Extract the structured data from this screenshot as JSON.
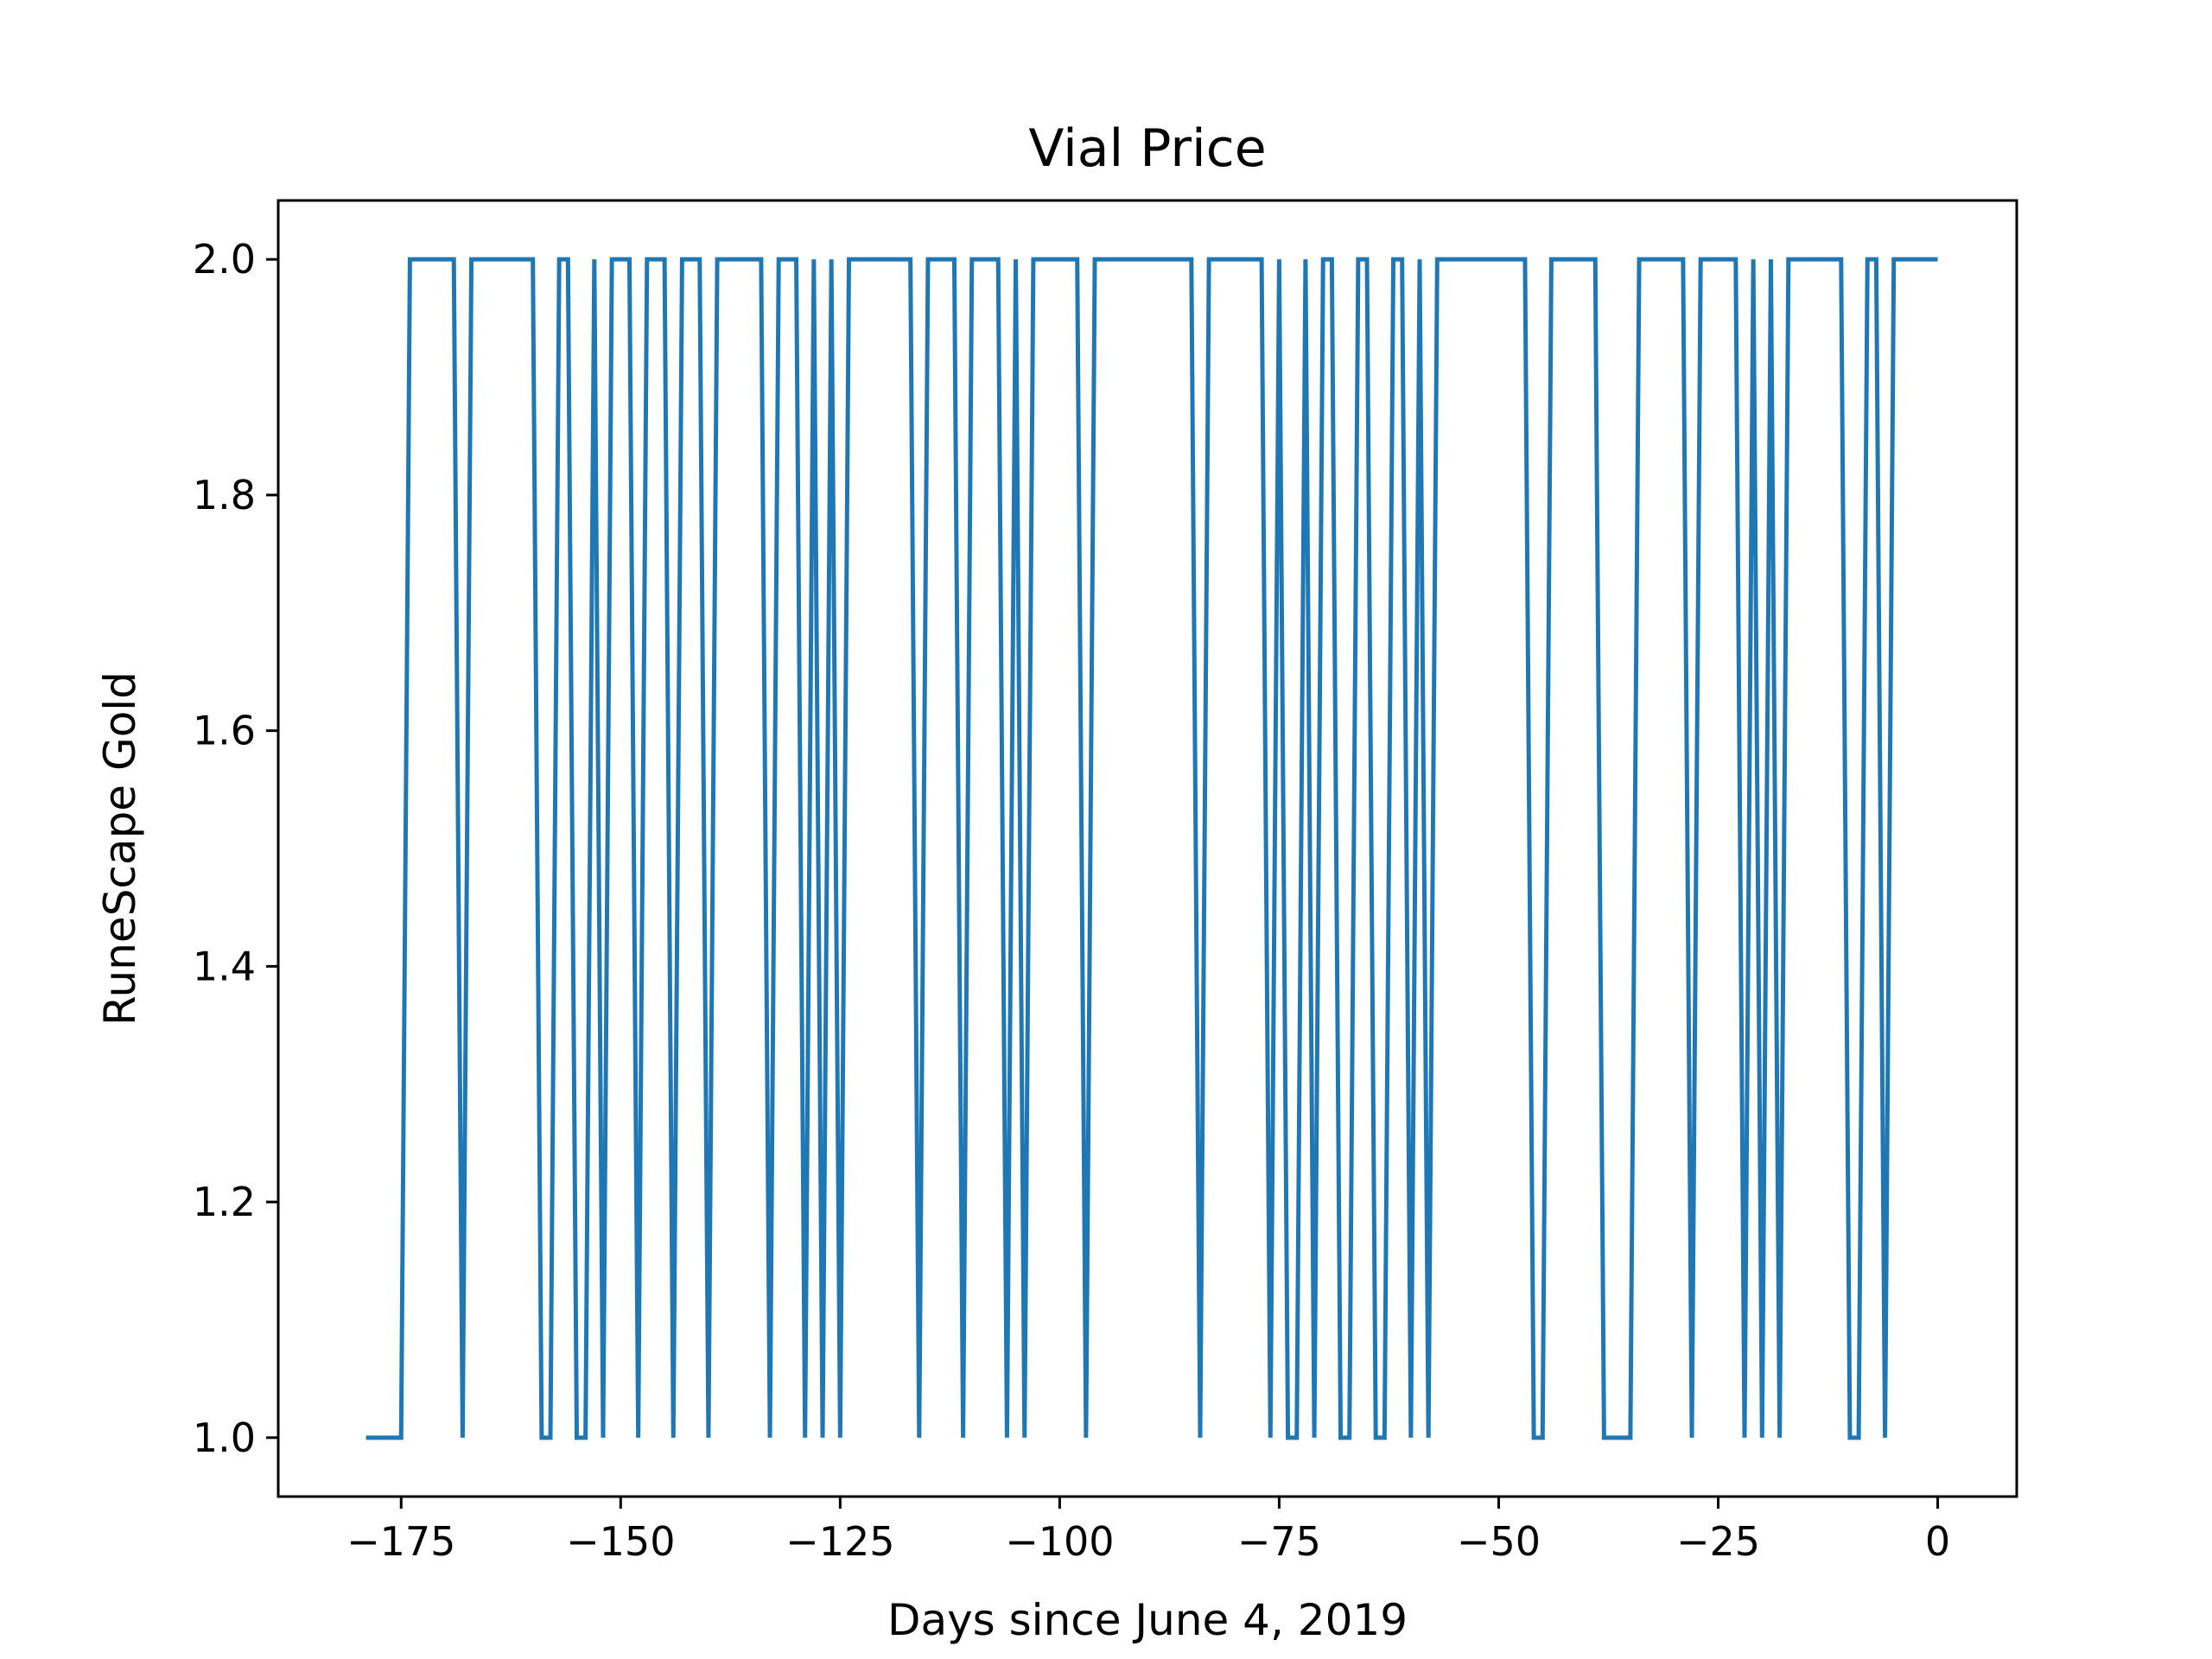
{
  "chart_data": {
    "type": "line",
    "title": "Vial Price",
    "xlabel": "Days since June 4, 2019",
    "ylabel": "RuneScape Gold",
    "xlim": [
      -189,
      9
    ],
    "ylim": [
      0.95,
      2.05
    ],
    "xticks": [
      -175,
      -150,
      -125,
      -100,
      -75,
      -50,
      -25,
      0
    ],
    "xtick_labels": [
      "−175",
      "−150",
      "−125",
      "−100",
      "−75",
      "−50",
      "−25",
      "0"
    ],
    "yticks": [
      1.0,
      1.2,
      1.4,
      1.6,
      1.8,
      2.0
    ],
    "ytick_labels": [
      "1.0",
      "1.2",
      "1.4",
      "1.6",
      "1.8",
      "2.0"
    ],
    "grid": false,
    "legend": false,
    "series": [
      {
        "color": "#1f77b4",
        "x": [
          -179,
          -178,
          -177,
          -176,
          -175,
          -174,
          -173,
          -172,
          -171,
          -170,
          -169,
          -168,
          -167,
          -166,
          -165,
          -164,
          -163,
          -162,
          -161,
          -160,
          -159,
          -158,
          -157,
          -156,
          -155,
          -154,
          -153,
          -152,
          -151,
          -150,
          -149,
          -148,
          -147,
          -146,
          -145,
          -144,
          -143,
          -142,
          -141,
          -140,
          -139,
          -138,
          -137,
          -136,
          -135,
          -134,
          -133,
          -132,
          -131,
          -130,
          -129,
          -128,
          -127,
          -126,
          -125,
          -124,
          -123,
          -122,
          -121,
          -120,
          -119,
          -118,
          -117,
          -116,
          -115,
          -114,
          -113,
          -112,
          -111,
          -110,
          -109,
          -108,
          -107,
          -106,
          -105,
          -104,
          -103,
          -102,
          -101,
          -100,
          -99,
          -98,
          -97,
          -96,
          -95,
          -94,
          -93,
          -92,
          -91,
          -90,
          -89,
          -88,
          -87,
          -86,
          -85,
          -84,
          -83,
          -82,
          -81,
          -80,
          -79,
          -78,
          -77,
          -76,
          -75,
          -74,
          -73,
          -72,
          -71,
          -70,
          -69,
          -68,
          -67,
          -66,
          -65,
          -64,
          -63,
          -62,
          -61,
          -60,
          -59,
          -58,
          -57,
          -56,
          -55,
          -54,
          -53,
          -52,
          -51,
          -50,
          -49,
          -48,
          -47,
          -46,
          -45,
          -44,
          -43,
          -42,
          -41,
          -40,
          -39,
          -38,
          -37,
          -36,
          -35,
          -34,
          -33,
          -32,
          -31,
          -30,
          -29,
          -28,
          -27,
          -26,
          -25,
          -24,
          -23,
          -22,
          -21,
          -20,
          -19,
          -18,
          -17,
          -16,
          -15,
          -14,
          -13,
          -12,
          -11,
          -10,
          -9,
          -8,
          -7,
          -6,
          -5,
          -4,
          -3,
          -2,
          -1,
          0
        ],
        "y": [
          1,
          1,
          1,
          1,
          1,
          2,
          2,
          2,
          2,
          2,
          2,
          1,
          2,
          2,
          2,
          2,
          2,
          2,
          2,
          2,
          1,
          1,
          2,
          2,
          1,
          1,
          2,
          1,
          2,
          2,
          2,
          1,
          2,
          2,
          2,
          1,
          2,
          2,
          2,
          1,
          2,
          2,
          2,
          2,
          2,
          2,
          1,
          2,
          2,
          2,
          1,
          2,
          1,
          2,
          1,
          2,
          2,
          2,
          2,
          2,
          2,
          2,
          2,
          1,
          2,
          2,
          2,
          2,
          1,
          2,
          2,
          2,
          2,
          1,
          2,
          1,
          2,
          2,
          2,
          2,
          2,
          2,
          1,
          2,
          2,
          2,
          2,
          2,
          2,
          2,
          2,
          2,
          2,
          2,
          2,
          1,
          2,
          2,
          2,
          2,
          2,
          2,
          2,
          1,
          2,
          1,
          1,
          2,
          1,
          2,
          2,
          1,
          1,
          2,
          2,
          1,
          1,
          2,
          2,
          1,
          2,
          1,
          2,
          2,
          2,
          2,
          2,
          2,
          2,
          2,
          2,
          2,
          2,
          1,
          1,
          2,
          2,
          2,
          2,
          2,
          2,
          1,
          1,
          1,
          1,
          2,
          2,
          2,
          2,
          2,
          2,
          1,
          2,
          2,
          2,
          2,
          2,
          1,
          2,
          1,
          2,
          1,
          2,
          2,
          2,
          2,
          2,
          2,
          2,
          1,
          1,
          2,
          2,
          1,
          2,
          2,
          2,
          2,
          2,
          2
        ]
      }
    ]
  }
}
